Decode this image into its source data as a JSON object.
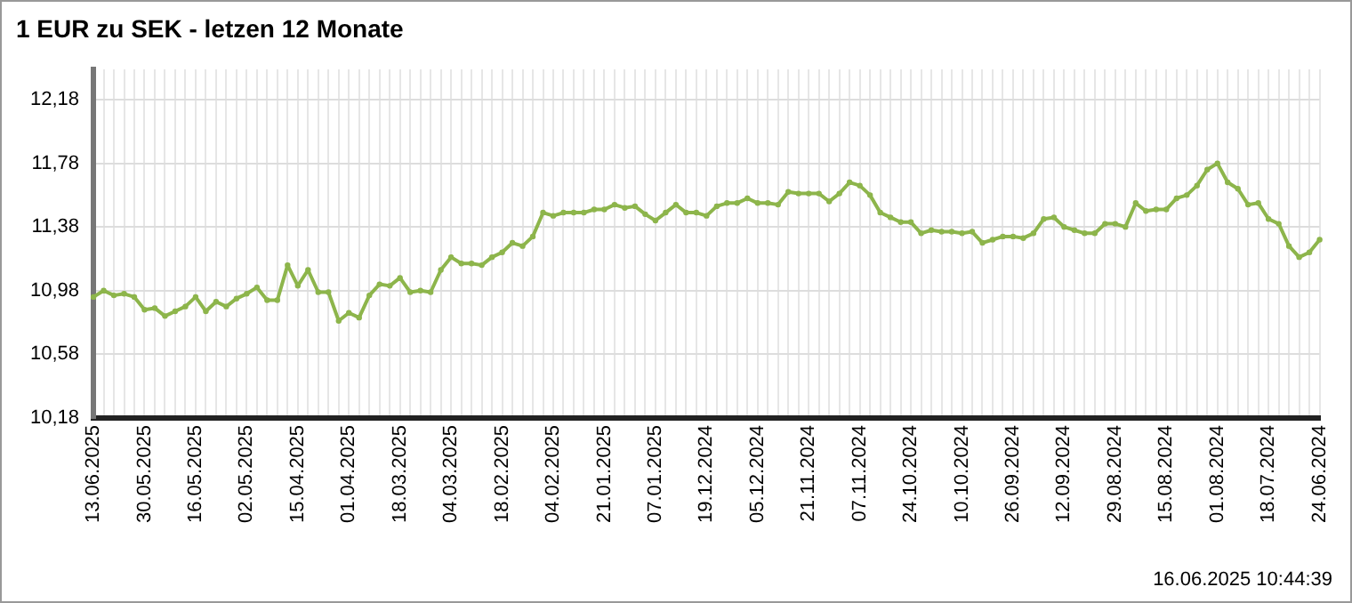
{
  "chart_data": {
    "type": "line",
    "title": "1 EUR zu SEK - letzen 12 Monate",
    "categories": [
      "13.06.2025",
      null,
      null,
      null,
      null,
      "30.05.2025",
      null,
      null,
      null,
      null,
      "16.05.2025",
      null,
      null,
      null,
      null,
      "02.05.2025",
      null,
      null,
      null,
      null,
      "15.04.2025",
      null,
      null,
      null,
      null,
      "01.04.2025",
      null,
      null,
      null,
      null,
      "18.03.2025",
      null,
      null,
      null,
      null,
      "04.03.2025",
      null,
      null,
      null,
      null,
      "18.02.2025",
      null,
      null,
      null,
      null,
      "04.02.2025",
      null,
      null,
      null,
      null,
      "21.01.2025",
      null,
      null,
      null,
      null,
      "07.01.2025",
      null,
      null,
      null,
      null,
      "19.12.2024",
      null,
      null,
      null,
      null,
      "05.12.2024",
      null,
      null,
      null,
      null,
      "21.11.2024",
      null,
      null,
      null,
      null,
      "07.11.2024",
      null,
      null,
      null,
      null,
      "24.10.2024",
      null,
      null,
      null,
      null,
      "10.10.2024",
      null,
      null,
      null,
      null,
      "26.09.2024",
      null,
      null,
      null,
      null,
      "12.09.2024",
      null,
      null,
      null,
      null,
      "29.08.2024",
      null,
      null,
      null,
      null,
      "15.08.2024",
      null,
      null,
      null,
      null,
      "01.08.2024",
      null,
      null,
      null,
      null,
      "18.07.2024",
      null,
      null,
      null,
      null,
      "24.06.2024"
    ],
    "series": [
      {
        "color": "#8db54b",
        "values": [
          10.94,
          10.98,
          10.95,
          10.96,
          10.94,
          10.86,
          10.87,
          10.82,
          10.85,
          10.88,
          10.94,
          10.85,
          10.91,
          10.88,
          10.93,
          10.96,
          11.0,
          10.92,
          10.92,
          11.14,
          11.01,
          11.11,
          10.97,
          10.97,
          10.79,
          10.84,
          10.81,
          10.95,
          11.02,
          11.01,
          11.06,
          10.97,
          10.98,
          10.97,
          11.11,
          11.19,
          11.15,
          11.15,
          11.14,
          11.19,
          11.22,
          11.28,
          11.26,
          11.32,
          11.47,
          11.45,
          11.47,
          11.47,
          11.47,
          11.49,
          11.49,
          11.52,
          11.5,
          11.51,
          11.46,
          11.42,
          11.47,
          11.52,
          11.47,
          11.47,
          11.45,
          11.51,
          11.53,
          11.53,
          11.56,
          11.53,
          11.53,
          11.52,
          11.6,
          11.59,
          11.59,
          11.59,
          11.54,
          11.59,
          11.66,
          11.64,
          11.58,
          11.47,
          11.44,
          11.41,
          11.41,
          11.34,
          11.36,
          11.35,
          11.35,
          11.34,
          11.35,
          11.28,
          11.3,
          11.32,
          11.32,
          11.31,
          11.34,
          11.43,
          11.44,
          11.38,
          11.36,
          11.34,
          11.34,
          11.4,
          11.4,
          11.38,
          11.53,
          11.48,
          11.49,
          11.49,
          11.56,
          11.58,
          11.64,
          11.74,
          11.78,
          11.66,
          11.62,
          11.52,
          11.53,
          11.43,
          11.4,
          11.26,
          11.19,
          11.22,
          11.3
        ]
      }
    ],
    "ylim": [
      10.18,
      12.37
    ],
    "yticks": [
      {
        "value": 10.18,
        "label": "10,18"
      },
      {
        "value": 10.58,
        "label": "10,58"
      },
      {
        "value": 10.98,
        "label": "10,98"
      },
      {
        "value": 11.38,
        "label": "11,38"
      },
      {
        "value": 11.78,
        "label": "11,78"
      },
      {
        "value": 12.18,
        "label": "12,18"
      }
    ],
    "grid": true,
    "legend": false,
    "marker": "circle",
    "line_style": "solid",
    "annotations": [
      "16.06.2025 10:44:39"
    ]
  }
}
